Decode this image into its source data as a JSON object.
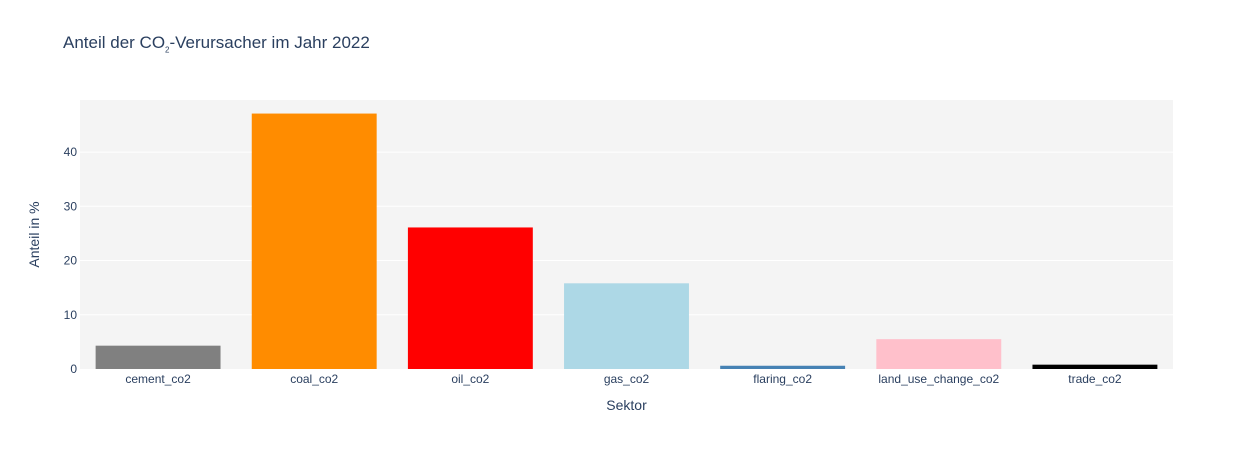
{
  "chart_data": {
    "type": "bar",
    "title_prefix": "Anteil der CO",
    "title_sub": "2",
    "title_suffix": "-Verursacher im Jahr 2022",
    "xlabel": "Sektor",
    "ylabel": "Anteil in %",
    "categories": [
      "cement_co2",
      "coal_co2",
      "oil_co2",
      "gas_co2",
      "flaring_co2",
      "land_use_change_co2",
      "trade_co2"
    ],
    "values": [
      4.3,
      47.1,
      26.1,
      15.8,
      0.6,
      5.5,
      0.8
    ],
    "colors": [
      "#808080",
      "#ff8c00",
      "#ff0000",
      "#add8e6",
      "#4682b4",
      "#ffc0cb",
      "#000000"
    ],
    "yticks": [
      0,
      10,
      20,
      30,
      40
    ],
    "ylim": [
      0,
      49.6
    ],
    "grid": true,
    "plot_background": "#f4f4f4",
    "grid_color": "#ffffff"
  }
}
